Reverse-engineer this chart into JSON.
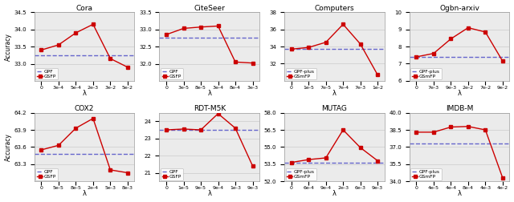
{
  "subplots": [
    {
      "title": "Cora",
      "xlabel": "λ",
      "ylabel": "Accuracy",
      "baseline_label": "GPF",
      "line_label": "GSFP",
      "baseline_value": 33.25,
      "x_ticks": [
        "0",
        "3e-4",
        "5e-4",
        "2e-3",
        "3e-2",
        "5e-2"
      ],
      "x_vals": [
        0,
        1,
        2,
        3,
        4,
        5
      ],
      "y_vals": [
        33.4,
        33.55,
        33.9,
        34.15,
        33.15,
        32.9
      ],
      "ylim": [
        32.5,
        34.5
      ],
      "yticks": [
        33.0,
        33.5,
        34.0,
        34.5
      ]
    },
    {
      "title": "CiteSeer",
      "xlabel": "λ",
      "ylabel": "Accuracy",
      "baseline_label": "GPF",
      "line_label": "GSFP",
      "baseline_value": 32.75,
      "x_ticks": [
        "0",
        "3e-5",
        "8e-5",
        "3e-4",
        "8e-4",
        "3e-3"
      ],
      "x_vals": [
        0,
        1,
        2,
        3,
        4,
        5
      ],
      "y_vals": [
        32.85,
        33.03,
        33.07,
        33.1,
        32.05,
        32.02
      ],
      "ylim": [
        31.5,
        33.5
      ],
      "yticks": [
        32.0,
        32.5,
        33.0,
        33.5
      ]
    },
    {
      "title": "Computers",
      "xlabel": "λ",
      "ylabel": "Accuracy",
      "baseline_label": "GPF-plus",
      "line_label": "GSmFP",
      "baseline_value": 33.7,
      "x_ticks": [
        "0",
        "1e-5",
        "7e-5",
        "7e-4",
        "7e-3",
        "1e-2"
      ],
      "x_vals": [
        0,
        1,
        2,
        3,
        4,
        5
      ],
      "y_vals": [
        33.7,
        33.9,
        34.5,
        36.6,
        34.3,
        30.7
      ],
      "ylim": [
        30.0,
        38.0
      ],
      "yticks": [
        32.0,
        34.0,
        36.0,
        38.0
      ]
    },
    {
      "title": "Ogbn-arxiv",
      "xlabel": "λ",
      "ylabel": "Accuracy",
      "baseline_label": "GPF-plus",
      "line_label": "GSmFP",
      "baseline_value": 7.4,
      "x_ticks": [
        "0",
        "7e-3",
        "9e-3",
        "2e-2",
        "7e-2",
        "9e-2"
      ],
      "x_vals": [
        0,
        1,
        2,
        3,
        4,
        5
      ],
      "y_vals": [
        7.4,
        7.6,
        8.45,
        9.1,
        8.85,
        7.15
      ],
      "ylim": [
        6.0,
        10.0
      ],
      "yticks": [
        6.0,
        7.0,
        8.0,
        9.0,
        10.0
      ]
    },
    {
      "title": "COX2",
      "xlabel": "λ",
      "ylabel": "Accuracy",
      "baseline_label": "GPF",
      "line_label": "GSFP",
      "baseline_value": 63.48,
      "x_ticks": [
        "0",
        "5e-5",
        "8e-5",
        "2e-4",
        "5e-3",
        "8e-3"
      ],
      "x_vals": [
        0,
        1,
        2,
        3,
        4,
        5
      ],
      "y_vals": [
        63.55,
        63.63,
        63.93,
        64.1,
        63.2,
        63.15
      ],
      "ylim": [
        63.0,
        64.2
      ],
      "yticks": [
        63.3,
        63.6,
        63.9,
        64.2
      ]
    },
    {
      "title": "RDT-M5K",
      "xlabel": "λ",
      "ylabel": "Accuracy",
      "baseline_label": "GPF",
      "line_label": "GSFP",
      "baseline_value": 23.5,
      "x_ticks": [
        "0",
        "1e-5",
        "9e-5",
        "9e-4",
        "1e-3",
        "9e-3"
      ],
      "x_vals": [
        0,
        1,
        2,
        3,
        4,
        5
      ],
      "y_vals": [
        23.5,
        23.55,
        23.5,
        24.45,
        23.6,
        21.4
      ],
      "ylim": [
        20.5,
        24.5
      ],
      "yticks": [
        21.0,
        22.0,
        23.0,
        24.0
      ]
    },
    {
      "title": "MUTAG",
      "xlabel": "λ",
      "ylabel": "Accuracy",
      "baseline_label": "GPF-plus",
      "line_label": "GSmFP",
      "baseline_value": 53.65,
      "x_ticks": [
        "0",
        "6e-4",
        "9e-4",
        "2e-3",
        "6e-3",
        "9e-3"
      ],
      "x_vals": [
        0,
        1,
        2,
        3,
        4,
        5
      ],
      "y_vals": [
        53.65,
        53.9,
        54.05,
        56.5,
        54.95,
        53.8
      ],
      "ylim": [
        52.0,
        58.0
      ],
      "yticks": [
        52.0,
        53.5,
        55.0,
        56.5,
        58.0
      ]
    },
    {
      "title": "IMDB-M",
      "xlabel": "λ",
      "ylabel": "Accuracy",
      "baseline_label": "GPF-plus",
      "line_label": "GSmFP",
      "baseline_value": 37.3,
      "x_ticks": [
        "0",
        "4e-5",
        "4e-4",
        "8e-4",
        "4e-3",
        "4e-2"
      ],
      "x_vals": [
        0,
        1,
        2,
        3,
        4,
        5
      ],
      "y_vals": [
        38.3,
        38.3,
        38.75,
        38.8,
        38.5,
        34.3
      ],
      "ylim": [
        34.0,
        40.0
      ],
      "yticks": [
        34.0,
        35.5,
        37.0,
        38.5,
        40.0
      ]
    }
  ],
  "baseline_color": "#6666cc",
  "line_color": "#cc0000",
  "marker": "s",
  "markersize": 3.0,
  "linewidth": 1.0,
  "grid_color": "#d0d0d0",
  "bg_color": "#ebebeb"
}
